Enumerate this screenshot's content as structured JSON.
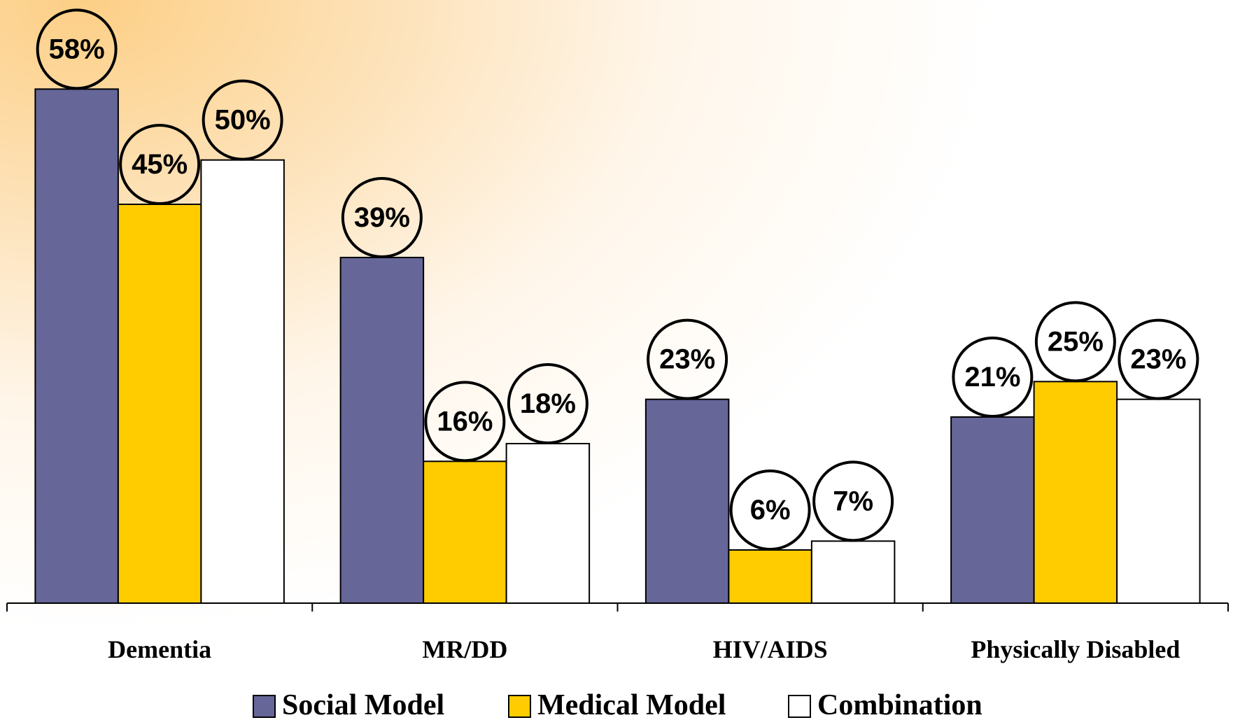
{
  "chart_data": {
    "type": "bar",
    "categories": [
      "Dementia",
      "MR/DD",
      "HIV/AIDS",
      "Physically Disabled"
    ],
    "series": [
      {
        "name": "Social Model",
        "color": "#666699",
        "values": [
          58,
          39,
          23,
          21
        ],
        "value_labels": [
          "58%",
          "39%",
          "23%",
          "21%"
        ]
      },
      {
        "name": "Medical Model",
        "color": "#ffcc00",
        "values": [
          45,
          16,
          6,
          25
        ],
        "value_labels": [
          "45%",
          "16%",
          "6%",
          "25%"
        ]
      },
      {
        "name": "Combination",
        "color": "#ffffff",
        "values": [
          50,
          18,
          7,
          23
        ],
        "value_labels": [
          "50%",
          "18%",
          "7%",
          "23%"
        ]
      }
    ],
    "ylim": [
      0,
      60
    ]
  }
}
